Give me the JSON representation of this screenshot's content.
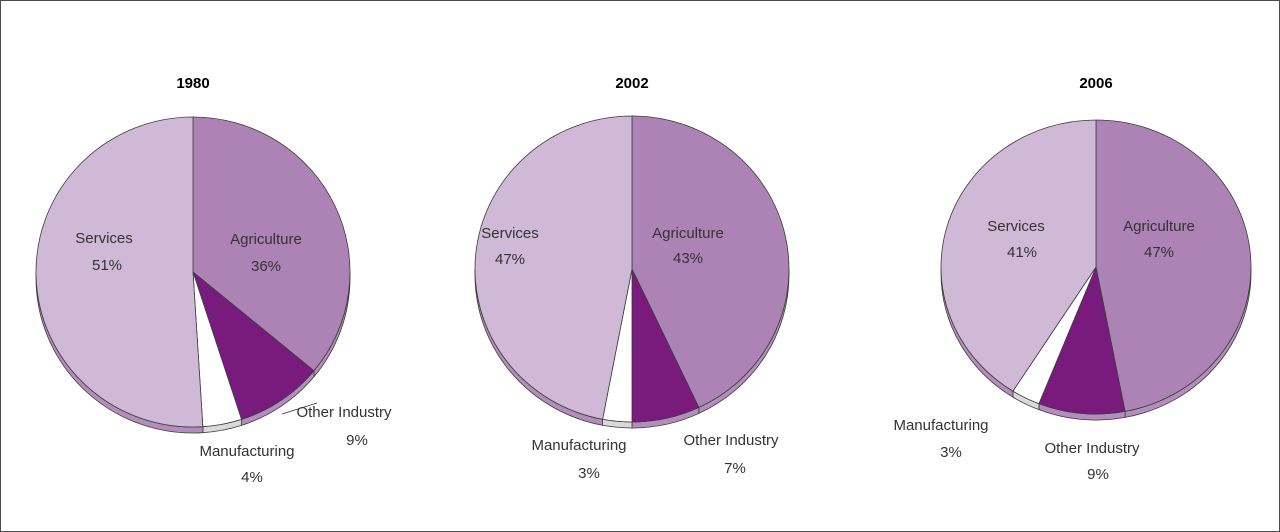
{
  "chart_data": [
    {
      "type": "pie",
      "title": "1980",
      "slices": [
        {
          "name": "Agriculture",
          "value": 36,
          "value_label": "36%"
        },
        {
          "name": "Other Industry",
          "value": 9,
          "value_label": "9%"
        },
        {
          "name": "Manufacturing",
          "value": 4,
          "value_label": "4%"
        },
        {
          "name": "Services",
          "value": 51,
          "value_label": "51%"
        }
      ]
    },
    {
      "type": "pie",
      "title": "2002",
      "slices": [
        {
          "name": "Agriculture",
          "value": 43,
          "value_label": "43%"
        },
        {
          "name": "Other Industry",
          "value": 7,
          "value_label": "7%"
        },
        {
          "name": "Manufacturing",
          "value": 3,
          "value_label": "3%"
        },
        {
          "name": "Services",
          "value": 47,
          "value_label": "47%"
        }
      ]
    },
    {
      "type": "pie",
      "title": "2006",
      "slices": [
        {
          "name": "Agriculture",
          "value": 47,
          "value_label": "47%"
        },
        {
          "name": "Other Industry",
          "value": 9,
          "value_label": "9%"
        },
        {
          "name": "Manufacturing",
          "value": 3,
          "value_label": "3%"
        },
        {
          "name": "Services",
          "value": 41,
          "value_label": "41%"
        }
      ]
    }
  ],
  "colors": {
    "Agriculture": "#ad83b6",
    "Other Industry": "#791b7d",
    "Manufacturing": "#ffffff",
    "Services": "#d0b9d6",
    "edge": "#b48dbd",
    "manufacturing_edge": "#d9d9d9",
    "outline": "#3d3d3d"
  }
}
